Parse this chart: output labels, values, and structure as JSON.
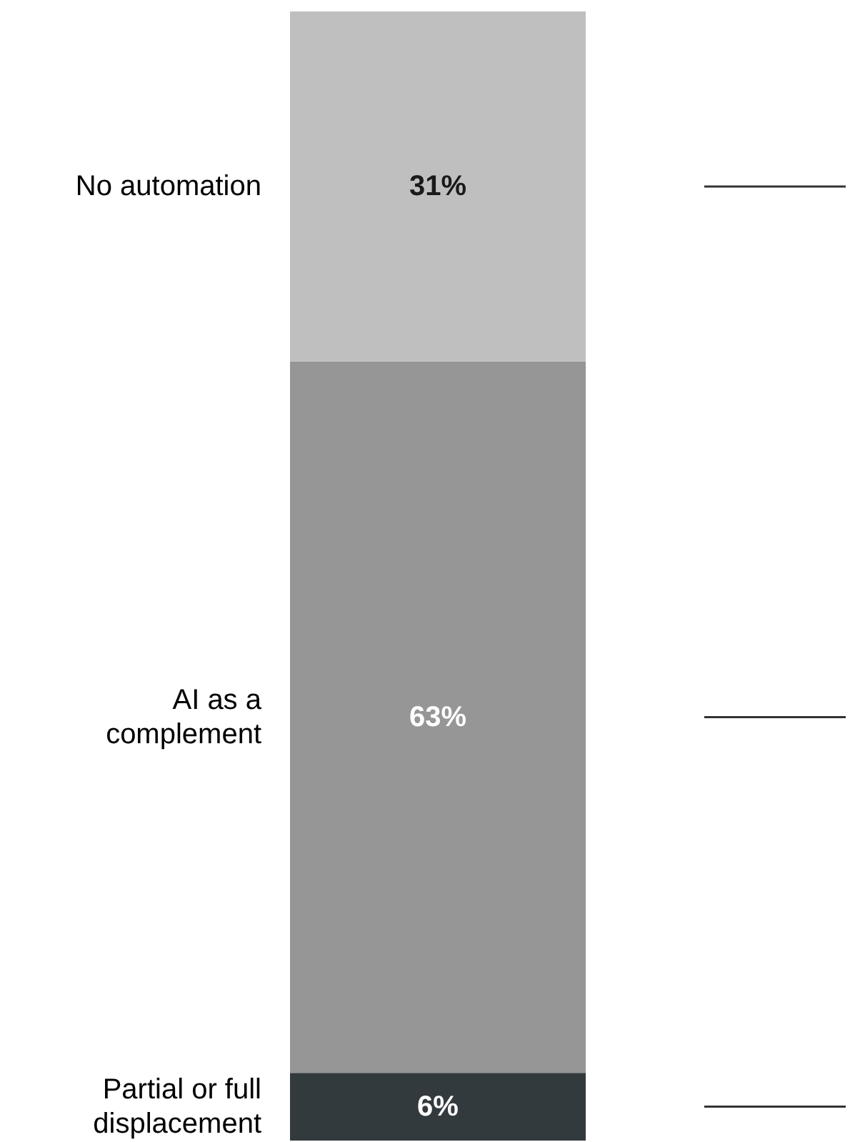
{
  "chart_data": {
    "type": "bar",
    "stacked": true,
    "categories": [
      null
    ],
    "data_labels": true,
    "series": [
      {
        "name": "Partial or full displacement",
        "color": "#333a3e",
        "values": [
          6
        ],
        "value_labels": [
          "6%"
        ]
      },
      {
        "name": "AI as a complement",
        "color": "#969696",
        "values": [
          63
        ],
        "value_labels": [
          "63%"
        ]
      },
      {
        "name": "No automation",
        "color": "#bfbfbf",
        "values": [
          31
        ],
        "value_labels": [
          "31%"
        ]
      }
    ]
  }
}
